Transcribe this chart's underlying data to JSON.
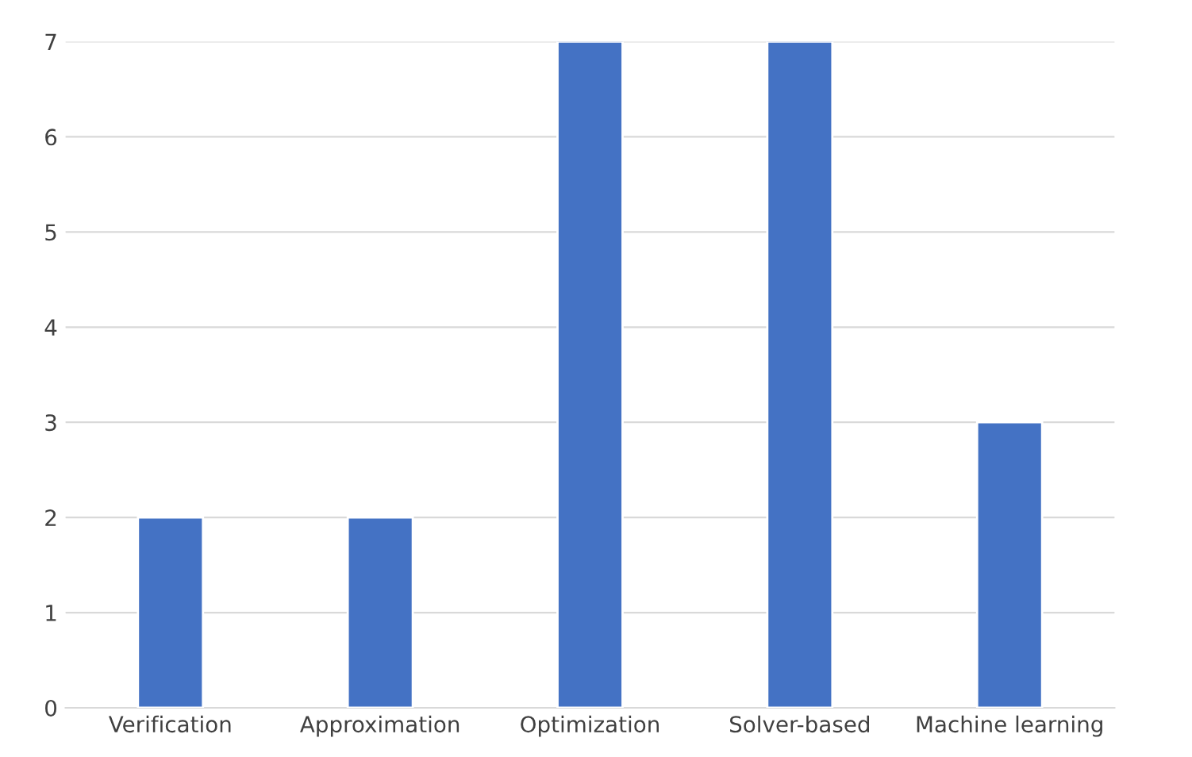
{
  "chart_data": {
    "type": "bar",
    "categories": [
      "Verification",
      "Approximation",
      "Optimization",
      "Solver-based",
      "Machine learning"
    ],
    "values": [
      2,
      2,
      7,
      7,
      3
    ],
    "color": "#4472c4",
    "ylim": [
      0,
      7
    ],
    "yticks": [
      0,
      1,
      2,
      3,
      4,
      5,
      6,
      7
    ],
    "grid": "y"
  }
}
